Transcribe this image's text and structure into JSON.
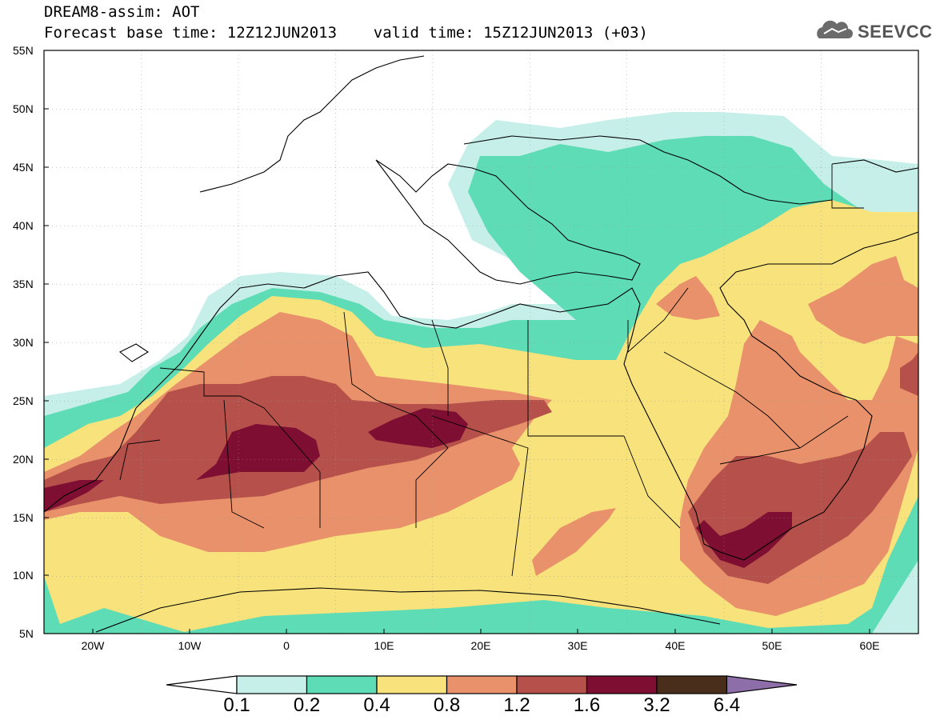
{
  "header": {
    "line1": "DREAM8-assim: AOT",
    "line2": "Forecast base time: 12Z12JUN2013    valid time: 15Z12JUN2013 (+03)"
  },
  "logo": {
    "text": "SEEVCCC",
    "icon": "cloud-logo-icon"
  },
  "map": {
    "lat_labels": [
      "55N",
      "50N",
      "45N",
      "40N",
      "35N",
      "30N",
      "25N",
      "20N",
      "15N",
      "10N",
      "5N"
    ],
    "lon_labels": [
      "20W",
      "10W",
      "0",
      "10E",
      "20E",
      "30E",
      "40E",
      "50E",
      "60E"
    ],
    "extent": {
      "lon_min": -25,
      "lon_max": 65,
      "lat_min": 5,
      "lat_max": 55
    }
  },
  "legend": {
    "levels": [
      "0.1",
      "0.2",
      "0.4",
      "0.8",
      "1.2",
      "1.6",
      "3.2",
      "6.4"
    ],
    "colors": [
      "#ffffff",
      "#c6efe9",
      "#5edcb5",
      "#f7e27c",
      "#e8916a",
      "#b6504a",
      "#7e0e32",
      "#4a2e1c",
      "#8e6ea8"
    ]
  }
}
